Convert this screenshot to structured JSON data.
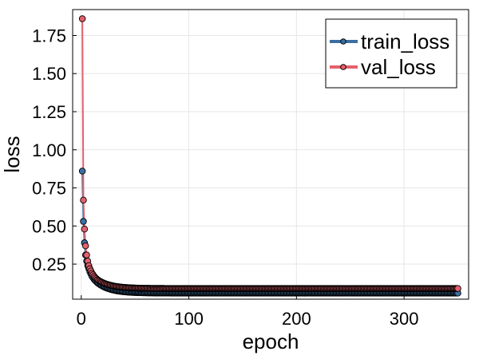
{
  "chart_data": {
    "type": "line",
    "xlabel": "epoch",
    "ylabel": "loss",
    "xlim": [
      -8,
      360
    ],
    "ylim": [
      0.02,
      1.92
    ],
    "x_ticks": [
      0,
      100,
      200,
      300
    ],
    "y_ticks": [
      0.25,
      0.5,
      0.75,
      1.0,
      1.25,
      1.5,
      1.75
    ],
    "y_tick_labels": [
      "0.25",
      "0.50",
      "0.75",
      "1.00",
      "1.25",
      "1.50",
      "1.75"
    ],
    "grid": true,
    "legend_position": "top-right",
    "epochs": 350,
    "series": [
      {
        "name": "train_loss",
        "color": "#3b6fa3",
        "marker": "circle",
        "head": [
          0.86,
          0.53,
          0.39,
          0.31,
          0.27,
          0.24,
          0.22,
          0.2,
          0.185,
          0.17,
          0.16,
          0.15,
          0.142,
          0.135,
          0.128
        ],
        "decay_to": 0.06
      },
      {
        "name": "val_loss",
        "color": "#e3616c",
        "marker": "circle",
        "head": [
          1.86,
          0.67,
          0.48,
          0.37,
          0.31,
          0.27,
          0.24,
          0.22,
          0.205,
          0.19,
          0.18,
          0.17,
          0.162,
          0.155,
          0.148
        ],
        "decay_to": 0.09
      }
    ]
  }
}
